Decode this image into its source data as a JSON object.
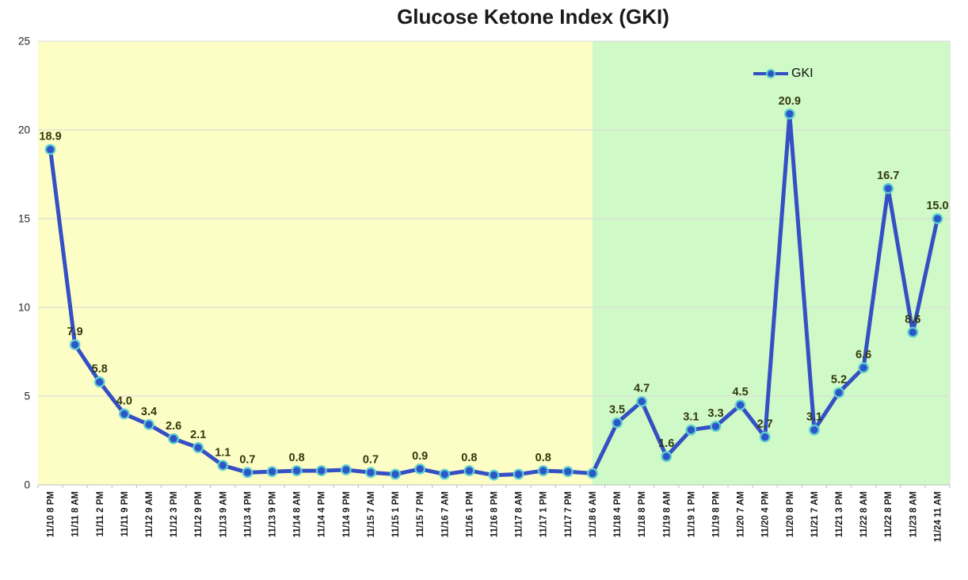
{
  "title": "Glucose Ketone Index (GKI)",
  "legend": {
    "label": "GKI",
    "position": "inside-top-right"
  },
  "chart_data": {
    "type": "line",
    "title": "Glucose Ketone Index (GKI)",
    "series_name": "GKI",
    "categories": [
      "11/10 8 PM",
      "11/11 8 AM",
      "11/11 2 PM",
      "11/11 9 PM",
      "11/12 9 AM",
      "11/12 3 PM",
      "11/12 9 PM",
      "11/13 9 AM",
      "11/13 4 PM",
      "11/13 9 PM",
      "11/14 8 AM",
      "11/14 4 PM",
      "11/14 9 PM",
      "11/15 7 AM",
      "11/15 1 PM",
      "11/15 7 PM",
      "11/16 7 AM",
      "11/16 1 PM",
      "11/16 8 PM",
      "11/17 8 AM",
      "11/17 1 PM",
      "11/17 7 PM",
      "11/18 6 AM",
      "11/18 4 PM",
      "11/18 8 PM",
      "11/19 8 AM",
      "11/19 1 PM",
      "11/19 8 PM",
      "11/20 7 AM",
      "11/20 4 PM",
      "11/20 8 PM",
      "11/21 7 AM",
      "11/21 3 PM",
      "11/22 8 AM",
      "11/22 8 PM",
      "11/23 8 AM",
      "11/24 11 AM"
    ],
    "values": [
      18.9,
      7.9,
      5.8,
      4.0,
      3.4,
      2.6,
      2.1,
      1.1,
      0.7,
      0.75,
      0.8,
      0.8,
      0.85,
      0.7,
      0.6,
      0.9,
      0.6,
      0.8,
      0.55,
      0.6,
      0.8,
      0.75,
      0.65,
      3.5,
      4.7,
      1.6,
      3.1,
      3.3,
      4.5,
      2.7,
      20.9,
      3.1,
      5.2,
      6.6,
      16.7,
      8.6,
      15.0
    ],
    "point_labels": [
      "18.9",
      "7.9",
      "5.8",
      "4.0",
      "3.4",
      "2.6",
      "2.1",
      "1.1",
      "0.7",
      "",
      "0.8",
      "",
      "",
      "0.7",
      "",
      "0.9",
      "",
      "0.8",
      "",
      "",
      "0.8",
      "",
      "",
      "3.5",
      "4.7",
      "1.6",
      "3.1",
      "3.3",
      "4.5",
      "2.7",
      "20.9",
      "3.1",
      "5.2",
      "6.6",
      "16.7",
      "8.6",
      "15.0"
    ],
    "ylim": [
      0,
      25
    ],
    "yticks": [
      0,
      5,
      10,
      15,
      20,
      25
    ],
    "grid": "horizontal",
    "legend_position": "inside-top-right",
    "zones": [
      {
        "name": "background-zone-yellow",
        "color": "#FDFDC6",
        "from_category": 0,
        "to_category": 22.5
      },
      {
        "name": "background-zone-green",
        "color": "#CFF9C6",
        "from_category": 22.5,
        "to_category": 37
      }
    ],
    "colors": {
      "line": "#3450C4",
      "marker_fill": "#2E56C9",
      "marker_stroke": "#5FD0CE",
      "point_label": "#33380D",
      "gridline": "#D9D9D9",
      "axis": "#BFBFBF",
      "tick_label": "#262626",
      "x_label": "#1A1A1A",
      "title": "#1A1A1A"
    }
  }
}
